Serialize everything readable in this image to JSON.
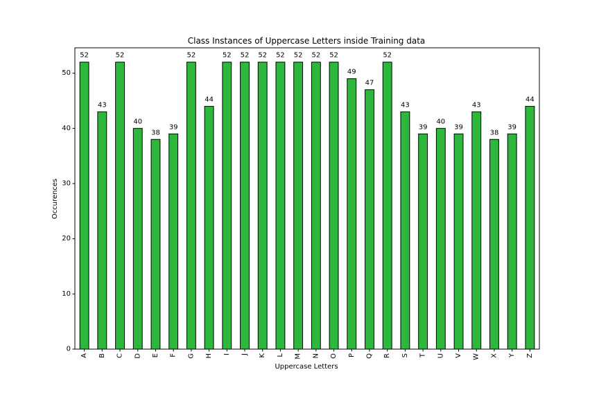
{
  "chart_data": {
    "type": "bar",
    "title": "Class Instances of Uppercase Letters inside Training data",
    "xlabel": "Uppercase Letters",
    "ylabel": "Occurences",
    "categories": [
      "A",
      "B",
      "C",
      "D",
      "E",
      "F",
      "G",
      "H",
      "I",
      "J",
      "K",
      "L",
      "M",
      "N",
      "O",
      "P",
      "Q",
      "R",
      "S",
      "T",
      "U",
      "V",
      "W",
      "X",
      "Y",
      "Z"
    ],
    "values": [
      52,
      43,
      52,
      40,
      38,
      39,
      52,
      44,
      52,
      52,
      52,
      52,
      52,
      52,
      52,
      49,
      47,
      52,
      43,
      39,
      40,
      39,
      43,
      38,
      39,
      44
    ],
    "ylim": [
      0,
      54.6
    ],
    "yticks": [
      0,
      10,
      20,
      30,
      40,
      50
    ],
    "bar_color": "#2db83d",
    "edge_color": "#000000",
    "grid": false,
    "data_labels": true
  }
}
